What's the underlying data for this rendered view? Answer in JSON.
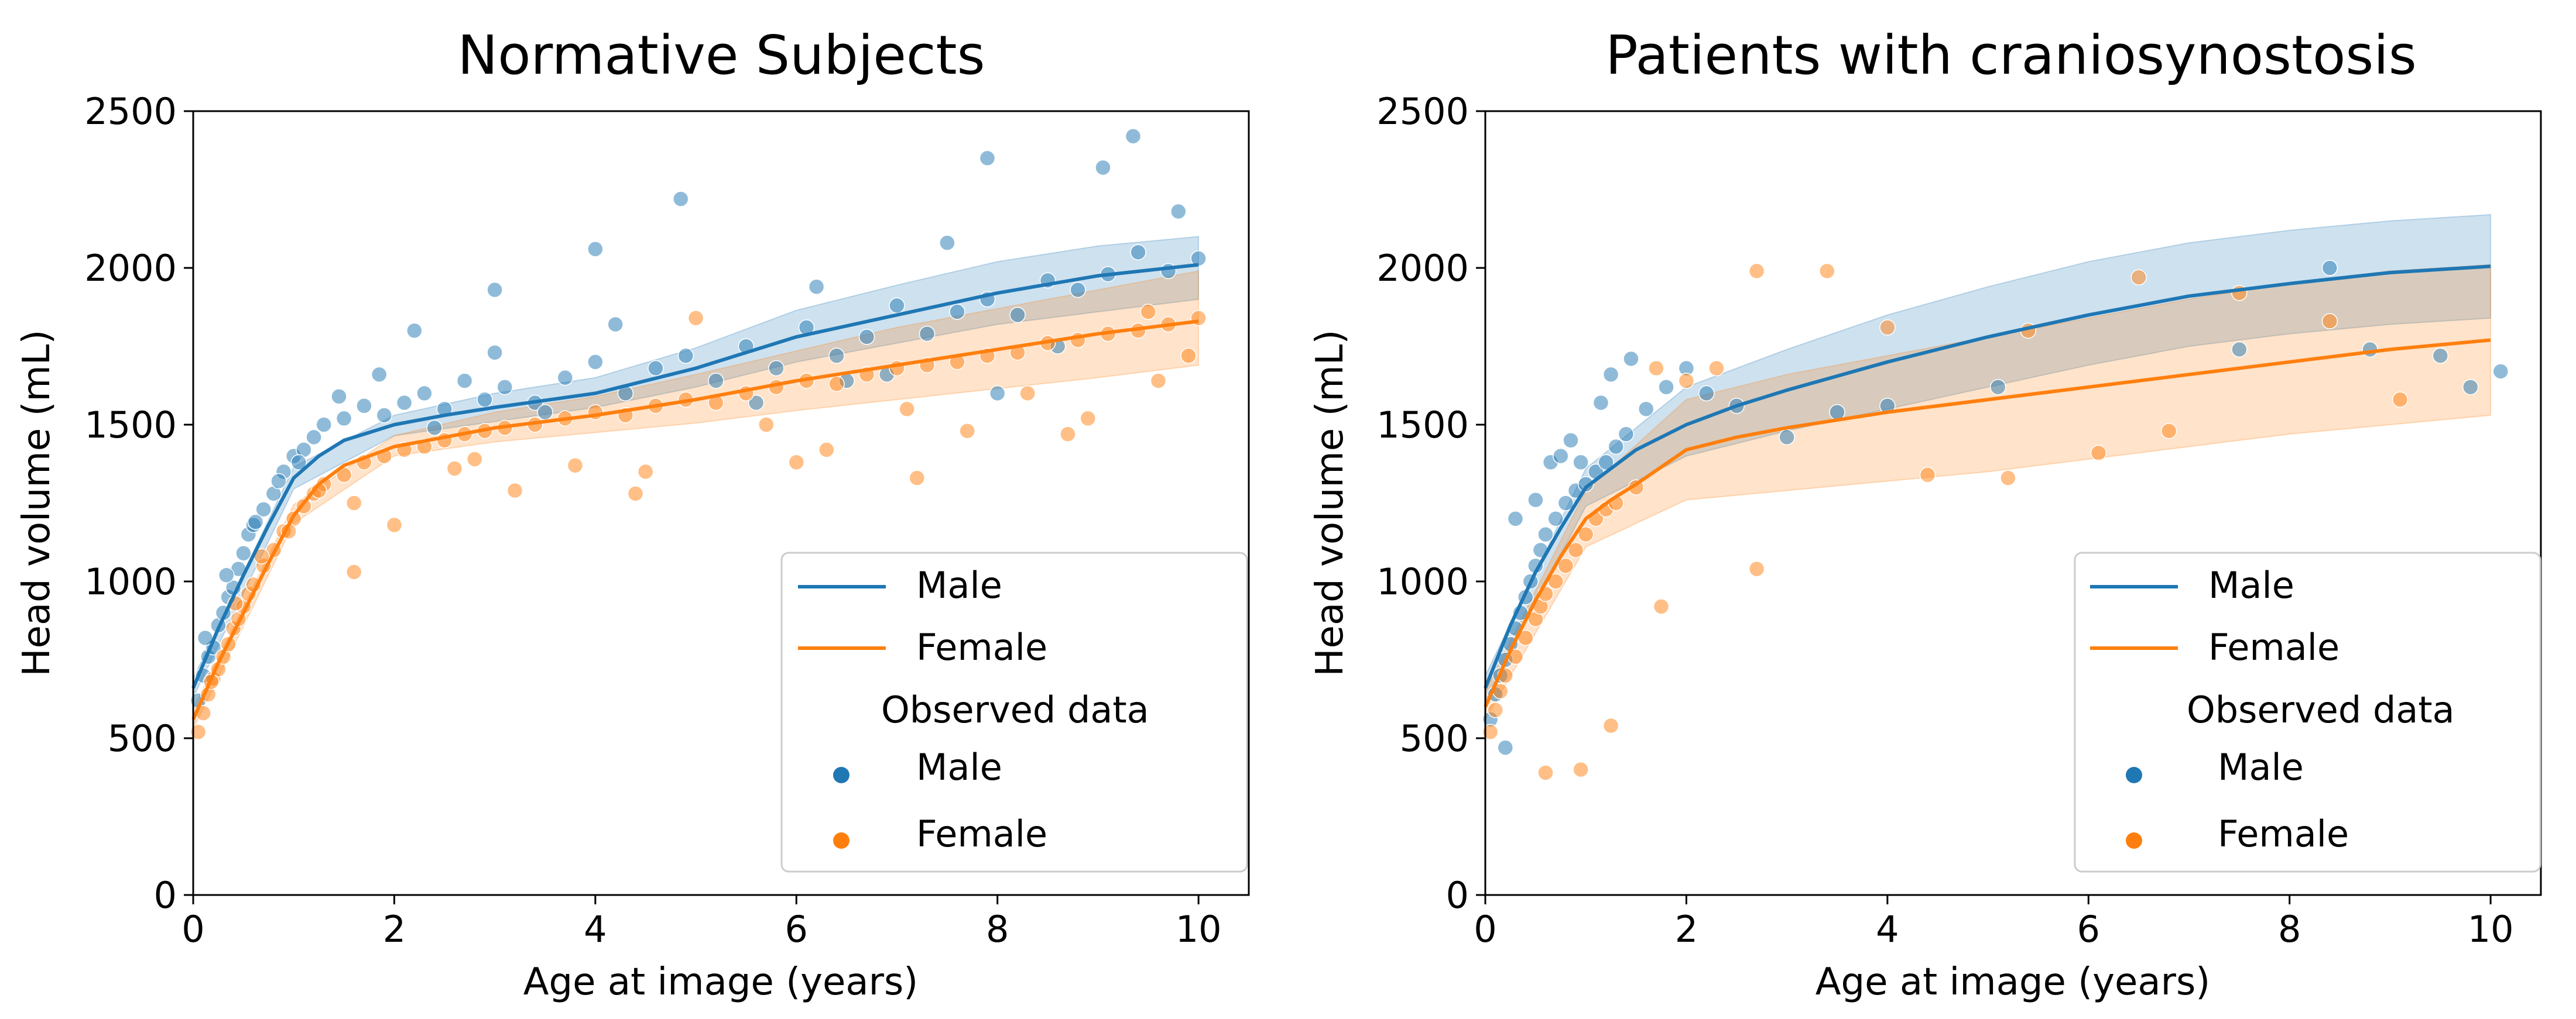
{
  "chart_data": [
    {
      "type": "scatter",
      "title": "Normative Subjects",
      "xlabel": "Age at image (years)",
      "ylabel": "Head volume (mL)",
      "xlim": [
        0,
        10.5
      ],
      "ylim": [
        0,
        2500
      ],
      "xticks": [
        0,
        2,
        4,
        6,
        8,
        10
      ],
      "yticks": [
        0,
        500,
        1000,
        1500,
        2000,
        2500
      ],
      "xtick_labels": [
        "0",
        "2",
        "4",
        "6",
        "8",
        "10"
      ],
      "ytick_labels": [
        "0",
        "500",
        "1000",
        "1500",
        "2000",
        "2500"
      ],
      "grid": false,
      "legend": {
        "position": "lower-right",
        "entries": [
          "Male",
          "Female"
        ],
        "section_title": "Observed data",
        "observed_entries": [
          "Male",
          "Female"
        ]
      },
      "colors": {
        "male": "#1f77b4",
        "female": "#ff7f0e"
      },
      "series": [
        {
          "name": "Male",
          "color": "#1f77b4",
          "curve": {
            "x": [
              0,
              0.25,
              0.5,
              0.75,
              1,
              1.25,
              1.5,
              2,
              2.5,
              3,
              4,
              5,
              6,
              7,
              8,
              9,
              10
            ],
            "y": [
              660,
              850,
              1020,
              1180,
              1330,
              1400,
              1450,
              1500,
              1530,
              1555,
              1600,
              1680,
              1780,
              1850,
              1920,
              1975,
              2010
            ]
          },
          "band": {
            "x": [
              0,
              1,
              2,
              3,
              4,
              5,
              6,
              7,
              8,
              9,
              10
            ],
            "lower": [
              630,
              1295,
              1465,
              1510,
              1555,
              1620,
              1700,
              1760,
              1820,
              1860,
              1900
            ],
            "upper": [
              690,
              1365,
              1530,
              1600,
              1650,
              1745,
              1865,
              1945,
              2020,
              2070,
              2100
            ]
          },
          "points": {
            "x": [
              0.05,
              0.1,
              0.15,
              0.2,
              0.25,
              0.3,
              0.35,
              0.4,
              0.45,
              0.5,
              0.55,
              0.6,
              0.7,
              0.8,
              0.9,
              1.0,
              1.1,
              1.2,
              1.3,
              1.5,
              1.7,
              1.9,
              2.1,
              2.3,
              2.5,
              2.7,
              2.9,
              3.1,
              3.4,
              3.7,
              4.0,
              4.3,
              4.6,
              4.9,
              5.2,
              5.5,
              5.8,
              6.1,
              6.4,
              6.7,
              7.0,
              7.3,
              7.6,
              7.9,
              8.2,
              8.5,
              8.8,
              9.1,
              9.4,
              9.7,
              10.0,
              0.12,
              0.33,
              0.62,
              0.85,
              1.05,
              1.45,
              1.85,
              2.4,
              3.0,
              3.5,
              4.2,
              4.85,
              5.6,
              6.2,
              6.9,
              7.5,
              7.9,
              8.6,
              9.05,
              9.35,
              9.8,
              3.0,
              4.0,
              2.2,
              6.5,
              8.0
            ],
            "y": [
              620,
              700,
              760,
              790,
              860,
              900,
              950,
              980,
              1040,
              1090,
              1150,
              1180,
              1230,
              1280,
              1350,
              1400,
              1420,
              1460,
              1500,
              1520,
              1560,
              1530,
              1570,
              1600,
              1550,
              1640,
              1580,
              1620,
              1570,
              1650,
              1700,
              1600,
              1680,
              1720,
              1640,
              1750,
              1680,
              1810,
              1720,
              1780,
              1880,
              1790,
              1860,
              1900,
              1850,
              1960,
              1930,
              1980,
              2050,
              1990,
              2030,
              820,
              1020,
              1190,
              1320,
              1380,
              1590,
              1660,
              1490,
              1730,
              1540,
              1820,
              2220,
              1570,
              1940,
              1660,
              2080,
              2350,
              1750,
              2320,
              2420,
              2180,
              1930,
              2060,
              1800,
              1640,
              1600
            ]
          }
        },
        {
          "name": "Female",
          "color": "#ff7f0e",
          "curve": {
            "x": [
              0,
              0.25,
              0.5,
              0.75,
              1,
              1.25,
              1.5,
              2,
              2.5,
              3,
              4,
              5,
              6,
              7,
              8,
              9,
              10
            ],
            "y": [
              560,
              740,
              900,
              1060,
              1210,
              1310,
              1370,
              1430,
              1460,
              1490,
              1530,
              1580,
              1640,
              1690,
              1740,
              1790,
              1830
            ]
          },
          "band": {
            "x": [
              0,
              1,
              2,
              3,
              4,
              5,
              6,
              7,
              8,
              9,
              10
            ],
            "lower": [
              530,
              1185,
              1400,
              1445,
              1475,
              1505,
              1545,
              1580,
              1615,
              1650,
              1690
            ],
            "upper": [
              595,
              1245,
              1465,
              1540,
              1590,
              1660,
              1735,
              1810,
              1870,
              1930,
              1990
            ]
          },
          "points": {
            "x": [
              0.05,
              0.1,
              0.15,
              0.2,
              0.25,
              0.3,
              0.35,
              0.4,
              0.45,
              0.5,
              0.55,
              0.6,
              0.7,
              0.8,
              0.9,
              1.0,
              1.1,
              1.2,
              1.3,
              1.5,
              1.7,
              1.9,
              2.1,
              2.3,
              2.5,
              2.7,
              2.9,
              3.1,
              3.4,
              3.7,
              4.0,
              4.3,
              4.6,
              4.9,
              5.2,
              5.5,
              5.8,
              6.1,
              6.4,
              6.7,
              7.0,
              7.3,
              7.6,
              7.9,
              8.2,
              8.5,
              8.8,
              9.1,
              9.4,
              9.7,
              10.0,
              0.18,
              0.42,
              0.68,
              0.95,
              1.25,
              1.6,
              2.0,
              2.6,
              3.2,
              3.8,
              4.4,
              5.0,
              5.7,
              6.3,
              7.1,
              7.7,
              8.3,
              8.9,
              9.5,
              9.9,
              1.6,
              2.8,
              4.5,
              6.0,
              7.2,
              8.7,
              9.6
            ],
            "y": [
              520,
              580,
              640,
              690,
              720,
              760,
              800,
              850,
              880,
              920,
              960,
              990,
              1050,
              1100,
              1160,
              1200,
              1240,
              1280,
              1310,
              1340,
              1380,
              1400,
              1420,
              1430,
              1450,
              1470,
              1480,
              1490,
              1500,
              1520,
              1540,
              1530,
              1560,
              1580,
              1570,
              1600,
              1620,
              1640,
              1630,
              1660,
              1680,
              1690,
              1700,
              1720,
              1730,
              1760,
              1770,
              1790,
              1800,
              1820,
              1840,
              680,
              930,
              1080,
              1160,
              1290,
              1250,
              1180,
              1360,
              1290,
              1370,
              1280,
              1840,
              1500,
              1420,
              1550,
              1480,
              1600,
              1520,
              1860,
              1720,
              1030,
              1390,
              1350,
              1380,
              1330,
              1470,
              1640
            ]
          }
        }
      ]
    },
    {
      "type": "scatter",
      "title": "Patients with craniosynostosis",
      "xlabel": "Age at image (years)",
      "ylabel": "Head volume (mL)",
      "xlim": [
        0,
        10.5
      ],
      "ylim": [
        0,
        2500
      ],
      "xticks": [
        0,
        2,
        4,
        6,
        8,
        10
      ],
      "yticks": [
        0,
        500,
        1000,
        1500,
        2000,
        2500
      ],
      "xtick_labels": [
        "0",
        "2",
        "4",
        "6",
        "8",
        "10"
      ],
      "ytick_labels": [
        "0",
        "500",
        "1000",
        "1500",
        "2000",
        "2500"
      ],
      "grid": false,
      "legend": {
        "position": "lower-right",
        "entries": [
          "Male",
          "Female"
        ],
        "section_title": "Observed data",
        "observed_entries": [
          "Male",
          "Female"
        ]
      },
      "colors": {
        "male": "#1f77b4",
        "female": "#ff7f0e"
      },
      "series": [
        {
          "name": "Male",
          "color": "#1f77b4",
          "curve": {
            "x": [
              0,
              0.25,
              0.5,
              0.75,
              1,
              1.25,
              1.5,
              2,
              2.5,
              3,
              4,
              5,
              6,
              7,
              8,
              9,
              10
            ],
            "y": [
              660,
              860,
              1030,
              1170,
              1300,
              1360,
              1420,
              1500,
              1560,
              1610,
              1700,
              1780,
              1850,
              1910,
              1950,
              1985,
              2005
            ]
          },
          "band": {
            "x": [
              0,
              1,
              2,
              3,
              4,
              5,
              6,
              7,
              8,
              9,
              10
            ],
            "lower": [
              620,
              1240,
              1400,
              1480,
              1550,
              1620,
              1690,
              1750,
              1790,
              1820,
              1840
            ],
            "upper": [
              700,
              1360,
              1620,
              1740,
              1850,
              1940,
              2020,
              2080,
              2120,
              2150,
              2170
            ]
          },
          "points": {
            "x": [
              0.05,
              0.1,
              0.15,
              0.2,
              0.25,
              0.3,
              0.35,
              0.4,
              0.45,
              0.5,
              0.55,
              0.6,
              0.7,
              0.8,
              0.9,
              1.0,
              1.1,
              1.2,
              1.3,
              1.4,
              1.6,
              1.8,
              2.0,
              2.2,
              2.5,
              3.0,
              3.5,
              4.0,
              5.1,
              7.5,
              8.4,
              8.8,
              9.5,
              9.8,
              10.1,
              0.2,
              0.3,
              0.5,
              0.65,
              0.75,
              0.85,
              0.95,
              1.15,
              1.25,
              1.45
            ],
            "y": [
              560,
              640,
              700,
              750,
              800,
              850,
              900,
              950,
              1000,
              1050,
              1100,
              1150,
              1200,
              1250,
              1290,
              1310,
              1350,
              1380,
              1430,
              1470,
              1550,
              1620,
              1680,
              1600,
              1560,
              1460,
              1540,
              1560,
              1620,
              1740,
              2000,
              1740,
              1720,
              1620,
              1670,
              470,
              1200,
              1260,
              1380,
              1400,
              1450,
              1380,
              1570,
              1660,
              1710
            ]
          }
        },
        {
          "name": "Female",
          "color": "#ff7f0e",
          "curve": {
            "x": [
              0,
              0.25,
              0.5,
              0.75,
              1,
              1.25,
              1.5,
              2,
              2.5,
              3,
              4,
              5,
              6,
              7,
              8,
              9,
              10
            ],
            "y": [
              600,
              780,
              940,
              1080,
              1200,
              1260,
              1310,
              1420,
              1460,
              1490,
              1540,
              1580,
              1620,
              1660,
              1700,
              1740,
              1770
            ]
          },
          "band": {
            "x": [
              0,
              1,
              2,
              3,
              4,
              5,
              6,
              7,
              8,
              9,
              10
            ],
            "lower": [
              560,
              1110,
              1260,
              1290,
              1320,
              1350,
              1390,
              1430,
              1470,
              1500,
              1530
            ],
            "upper": [
              650,
              1290,
              1580,
              1660,
              1720,
              1780,
              1840,
              1900,
              1950,
              1990,
              2010
            ]
          },
          "points": {
            "x": [
              0.05,
              0.1,
              0.15,
              0.2,
              0.3,
              0.4,
              0.5,
              0.55,
              0.6,
              0.7,
              0.8,
              0.9,
              1.0,
              1.1,
              1.2,
              1.3,
              1.5,
              1.7,
              2.0,
              2.3,
              2.7,
              3.4,
              4.4,
              5.2,
              6.1,
              6.5,
              6.8,
              7.5,
              8.4,
              9.1,
              0.6,
              0.95,
              1.25,
              1.75,
              2.7,
              4.0,
              5.4
            ],
            "y": [
              520,
              590,
              650,
              700,
              760,
              820,
              880,
              920,
              960,
              1000,
              1050,
              1100,
              1150,
              1200,
              1230,
              1250,
              1300,
              1680,
              1640,
              1680,
              1990,
              1990,
              1340,
              1330,
              1410,
              1970,
              1480,
              1920,
              1830,
              1580,
              390,
              400,
              540,
              920,
              1040,
              1810,
              1800
            ]
          }
        }
      ]
    }
  ]
}
